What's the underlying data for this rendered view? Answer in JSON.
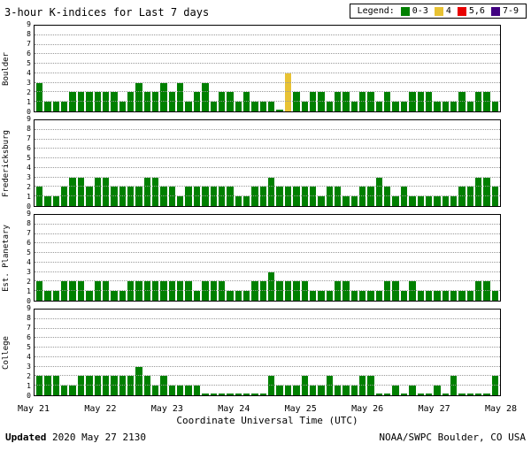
{
  "title": "3-hour K-indices for Last 7 days",
  "legend": {
    "label": "Legend:",
    "items": [
      {
        "label": "0-3",
        "color": "#008000",
        "k_range": [
          0,
          3
        ]
      },
      {
        "label": "4",
        "color": "#e8c233",
        "k_range": [
          4,
          4
        ]
      },
      {
        "label": "5,6",
        "color": "#e80000",
        "k_range": [
          5,
          6
        ]
      },
      {
        "label": "7-9",
        "color": "#400080",
        "k_range": [
          7,
          9
        ]
      }
    ]
  },
  "xlabel": "Coordinate Universal Time (UTC)",
  "x_ticks": [
    "May 21",
    "May 22",
    "May 23",
    "May 24",
    "May 25",
    "May 26",
    "May 27",
    "May 28"
  ],
  "footer": {
    "updated_label": "Updated",
    "updated_value": " 2020 May 27 2130",
    "credit": "NOAA/SWPC Boulder, CO USA"
  },
  "chart_data": [
    {
      "type": "bar",
      "station": "Boulder",
      "ylabel": "Boulder",
      "ylim": [
        0,
        9
      ],
      "bars_per_day": 8,
      "values": [
        3,
        1,
        1,
        1,
        2,
        2,
        2,
        2,
        2,
        2,
        1,
        2,
        3,
        2,
        2,
        3,
        2,
        3,
        1,
        2,
        3,
        1,
        2,
        2,
        1,
        2,
        1,
        1,
        1,
        0,
        4,
        2,
        1,
        2,
        2,
        1,
        2,
        2,
        1,
        2,
        2,
        1,
        2,
        1,
        1,
        2,
        2,
        2,
        1,
        1,
        1,
        2,
        1,
        2,
        2,
        1
      ]
    },
    {
      "type": "bar",
      "station": "Fredericksburg",
      "ylabel": "Fredericksburg",
      "ylim": [
        0,
        9
      ],
      "bars_per_day": 8,
      "values": [
        2,
        1,
        1,
        2,
        3,
        3,
        2,
        3,
        3,
        2,
        2,
        2,
        2,
        3,
        3,
        2,
        2,
        1,
        2,
        2,
        2,
        2,
        2,
        2,
        1,
        1,
        2,
        2,
        3,
        2,
        2,
        2,
        2,
        2,
        1,
        2,
        2,
        1,
        1,
        2,
        2,
        3,
        2,
        1,
        2,
        1,
        1,
        1,
        1,
        1,
        1,
        2,
        2,
        3,
        3,
        2
      ]
    },
    {
      "type": "bar",
      "station": "Est. Planetary",
      "ylabel": "Est. Planetary",
      "ylim": [
        0,
        9
      ],
      "bars_per_day": 8,
      "values": [
        2,
        1,
        1,
        2,
        2,
        2,
        1,
        2,
        2,
        1,
        1,
        2,
        2,
        2,
        2,
        2,
        2,
        2,
        2,
        1,
        2,
        2,
        2,
        1,
        1,
        1,
        2,
        2,
        3,
        2,
        2,
        2,
        2,
        1,
        1,
        1,
        2,
        2,
        1,
        1,
        1,
        1,
        2,
        2,
        1,
        2,
        1,
        1,
        1,
        1,
        1,
        1,
        1,
        2,
        2,
        1
      ]
    },
    {
      "type": "bar",
      "station": "College",
      "ylabel": "College",
      "ylim": [
        0,
        9
      ],
      "bars_per_day": 8,
      "values": [
        2,
        2,
        2,
        1,
        1,
        2,
        2,
        2,
        2,
        2,
        2,
        2,
        3,
        2,
        1,
        2,
        1,
        1,
        1,
        1,
        0,
        0,
        0,
        0,
        0,
        0,
        0,
        0,
        2,
        1,
        1,
        1,
        2,
        1,
        1,
        2,
        1,
        1,
        1,
        2,
        2,
        0,
        0,
        1,
        0,
        1,
        0,
        0,
        1,
        0,
        2,
        0,
        0,
        0,
        0,
        2
      ]
    }
  ]
}
